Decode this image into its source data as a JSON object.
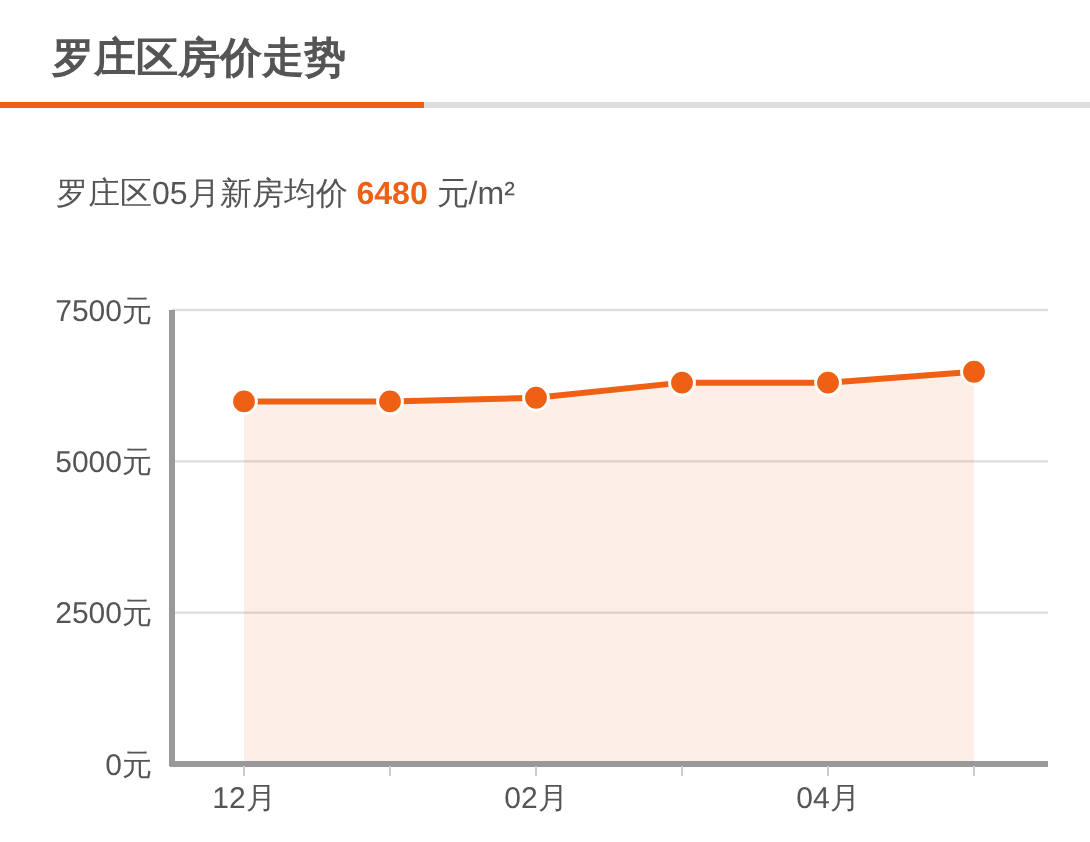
{
  "chart_data": {
    "type": "area",
    "title": "罗庄区房价走势",
    "subtitle": "罗庄区05月新房均价 6480 元/m²",
    "categories": [
      "12月",
      null,
      "02月",
      null,
      "04月",
      null
    ],
    "series": [
      {
        "color": "#ee6114",
        "values": [
          5990,
          5990,
          6050,
          6300,
          6300,
          6480
        ]
      }
    ],
    "ylim": [
      0,
      7500
    ],
    "yticks": [
      {
        "value": 0,
        "label": "0元"
      },
      {
        "value": 2500,
        "label": "2500元"
      },
      {
        "value": 5000,
        "label": "5000元"
      },
      {
        "value": 7500,
        "label": "7500元"
      }
    ],
    "grid": "y",
    "marker": "circle"
  }
}
